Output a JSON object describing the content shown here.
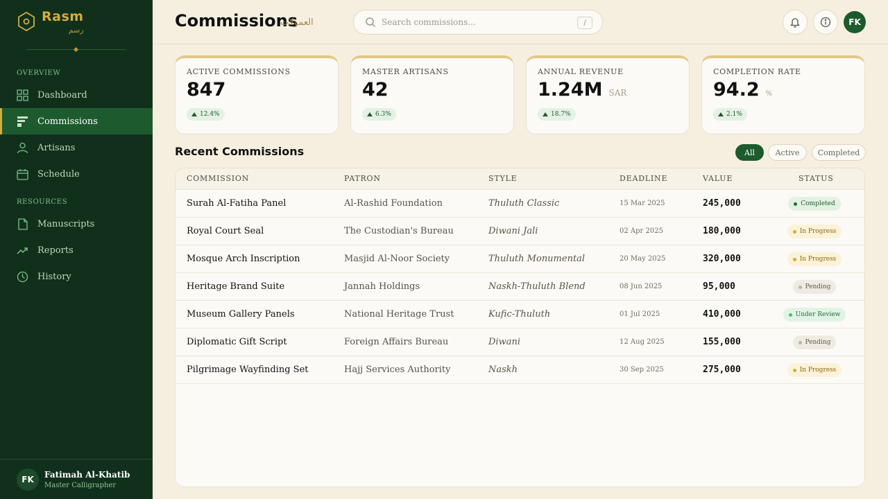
{
  "brand": {
    "name": "Rasm",
    "arabic": "رسم"
  },
  "nav": {
    "overview_label": "OVERVIEW",
    "resources_label": "RESOURCES",
    "items": [
      {
        "id": "dashboard",
        "label": "Dashboard",
        "icon": "grid-icon",
        "active": false
      },
      {
        "id": "commissions",
        "label": "Commissions",
        "icon": "commissions-icon",
        "active": true
      },
      {
        "id": "artisans",
        "label": "Artisans",
        "icon": "user-icon",
        "active": false
      },
      {
        "id": "schedule",
        "label": "Schedule",
        "icon": "calendar-icon",
        "active": false
      }
    ],
    "resources": [
      {
        "id": "manuscripts",
        "label": "Manuscripts",
        "icon": "document-icon"
      },
      {
        "id": "reports",
        "label": "Reports",
        "icon": "trend-icon"
      },
      {
        "id": "history",
        "label": "History",
        "icon": "clock-icon"
      }
    ]
  },
  "user": {
    "initials": "FK",
    "name": "Fatimah Al-Khatib",
    "role": "Master Calligrapher"
  },
  "header": {
    "title": "Commissions",
    "title_arabic": "العمولات",
    "search_placeholder": "Search commissions...",
    "search_shortcut": "/",
    "avatar_initials": "FK"
  },
  "stats": [
    {
      "label": "Active Commissions",
      "value": "847",
      "unit": "",
      "delta": "12.4%"
    },
    {
      "label": "Master Artisans",
      "value": "42",
      "unit": "",
      "delta": "6.3%"
    },
    {
      "label": "Annual Revenue",
      "value": "1.24M",
      "unit": "SAR",
      "delta": "18.7%"
    },
    {
      "label": "Completion Rate",
      "value": "94.2",
      "unit": "%",
      "delta": "2.1%"
    }
  ],
  "section": {
    "title": "Recent Commissions",
    "filters": [
      {
        "label": "All",
        "active": true
      },
      {
        "label": "Active",
        "active": false
      },
      {
        "label": "Completed",
        "active": false
      }
    ]
  },
  "table": {
    "columns": [
      "Commission",
      "Patron",
      "Style",
      "Deadline",
      "Value",
      "Status"
    ],
    "rows": [
      {
        "commission": "Surah Al-Fatiha Panel",
        "patron": "Al-Rashid Foundation",
        "style": "Thuluth Classic",
        "deadline": "15 Mar 2025",
        "value": "245,000",
        "status": "Completed"
      },
      {
        "commission": "Royal Court Seal",
        "patron": "The Custodian's Bureau",
        "style": "Diwani Jali",
        "deadline": "02 Apr 2025",
        "value": "180,000",
        "status": "In Progress"
      },
      {
        "commission": "Mosque Arch Inscription",
        "patron": "Masjid Al-Noor Society",
        "style": "Thuluth Monumental",
        "deadline": "20 May 2025",
        "value": "320,000",
        "status": "In Progress"
      },
      {
        "commission": "Heritage Brand Suite",
        "patron": "Jannah Holdings",
        "style": "Naskh-Thuluth Blend",
        "deadline": "08 Jun 2025",
        "value": "95,000",
        "status": "Pending"
      },
      {
        "commission": "Museum Gallery Panels",
        "patron": "National Heritage Trust",
        "style": "Kufic-Thuluth",
        "deadline": "01 Jul 2025",
        "value": "410,000",
        "status": "Under Review"
      },
      {
        "commission": "Diplomatic Gift Script",
        "patron": "Foreign Affairs Bureau",
        "style": "Diwani",
        "deadline": "12 Aug 2025",
        "value": "155,000",
        "status": "Pending"
      },
      {
        "commission": "Pilgrimage Wayfinding Set",
        "patron": "Hajj Services Authority",
        "style": "Naskh",
        "deadline": "30 Sep 2025",
        "value": "275,000",
        "status": "In Progress"
      }
    ]
  },
  "status_colors": {
    "Completed": {
      "bg": "#e3f1e3",
      "fg": "#1f5a2e",
      "dot": "#1f6b35"
    },
    "In Progress": {
      "bg": "#fbf2d8",
      "fg": "#8a6a12",
      "dot": "#d4ac3c"
    },
    "Pending": {
      "bg": "#efebe2",
      "fg": "#5c584c",
      "dot": "#b9b4a6"
    },
    "Under Review": {
      "bg": "#e1f3e6",
      "fg": "#2b6a3a",
      "dot": "#4cbf6a"
    }
  },
  "colors": {
    "sidebar": "#10301c",
    "accent": "#d4ac3c",
    "primary": "#1d5b2f",
    "background": "#f6efdf"
  }
}
